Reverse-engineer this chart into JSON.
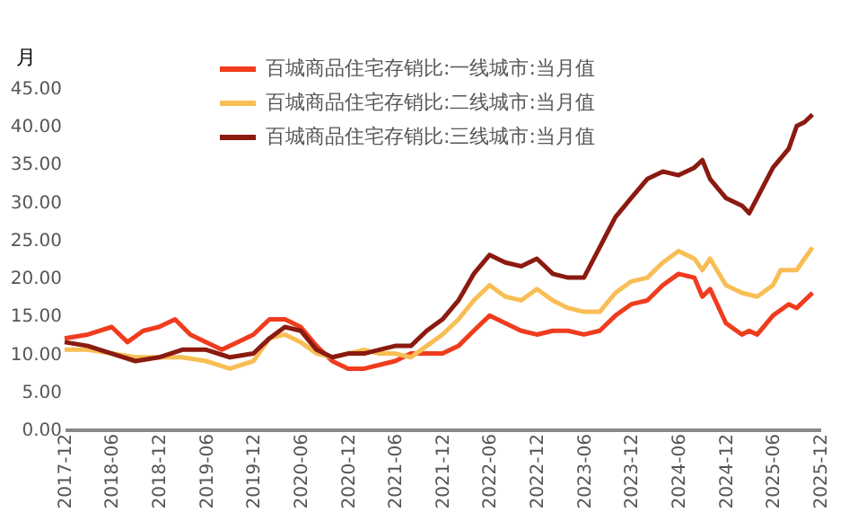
{
  "chart_data": {
    "type": "line",
    "ylabel": "月",
    "legend": "top",
    "grid": false,
    "line_style": "solid",
    "marker": "none",
    "xlim": [
      "2017-12",
      "2025-12"
    ],
    "xticks": [
      "2017-12",
      "2018-06",
      "2018-12",
      "2019-06",
      "2019-12",
      "2020-06",
      "2020-12",
      "2021-06",
      "2021-12",
      "2022-06",
      "2022-12",
      "2023-06",
      "2023-12",
      "2024-06",
      "2024-12",
      "2025-06",
      "2025-12"
    ],
    "ylim": [
      0,
      45
    ],
    "yticks": [
      {
        "value": 0,
        "label": "0.00"
      },
      {
        "value": 5,
        "label": "5.00"
      },
      {
        "value": 10,
        "label": "10.00"
      },
      {
        "value": 15,
        "label": "15.00"
      },
      {
        "value": 20,
        "label": "20.00"
      },
      {
        "value": 25,
        "label": "25.00"
      },
      {
        "value": 30,
        "label": "30.00"
      },
      {
        "value": 35,
        "label": "35.00"
      },
      {
        "value": 40,
        "label": "40.00"
      },
      {
        "value": 45,
        "label": "45.00"
      }
    ],
    "series": [
      {
        "name": "百城商品住宅存销比:一线城市:当月值",
        "color": "#f03c1e",
        "x": [
          "2017-12",
          "2018-03",
          "2018-06",
          "2018-08",
          "2018-10",
          "2018-12",
          "2019-02",
          "2019-04",
          "2019-06",
          "2019-08",
          "2019-10",
          "2019-12",
          "2020-02",
          "2020-04",
          "2020-06",
          "2020-08",
          "2020-10",
          "2020-12",
          "2021-02",
          "2021-04",
          "2021-06",
          "2021-08",
          "2021-10",
          "2021-12",
          "2022-02",
          "2022-04",
          "2022-06",
          "2022-08",
          "2022-10",
          "2022-12",
          "2023-02",
          "2023-04",
          "2023-06",
          "2023-08",
          "2023-10",
          "2023-12",
          "2024-02",
          "2024-04",
          "2024-06",
          "2024-08",
          "2024-09",
          "2024-10",
          "2024-12",
          "2025-02",
          "2025-03",
          "2025-04",
          "2025-06",
          "2025-08",
          "2025-09",
          "2025-10",
          "2025-11"
        ],
        "values": [
          12,
          12.5,
          13.5,
          11.5,
          13,
          13.5,
          14.5,
          12.5,
          11.5,
          10.5,
          11.5,
          12.5,
          14.5,
          14.5,
          13.5,
          11,
          9,
          8,
          8,
          8.5,
          9,
          10,
          10,
          10,
          11,
          13,
          15,
          14,
          13,
          12.5,
          13,
          13,
          12.5,
          13,
          15,
          16.5,
          17,
          19,
          20.5,
          20,
          17.5,
          18.5,
          14,
          12.5,
          13,
          12.5,
          15,
          16.5,
          16,
          17,
          18
        ]
      },
      {
        "name": "百城商品住宅存销比:二线城市:当月值",
        "color": "#f8be55",
        "x": [
          "2017-12",
          "2018-03",
          "2018-06",
          "2018-09",
          "2018-12",
          "2019-03",
          "2019-06",
          "2019-09",
          "2019-12",
          "2020-02",
          "2020-04",
          "2020-06",
          "2020-08",
          "2020-10",
          "2020-12",
          "2021-02",
          "2021-04",
          "2021-06",
          "2021-08",
          "2021-10",
          "2021-12",
          "2022-02",
          "2022-04",
          "2022-06",
          "2022-08",
          "2022-10",
          "2022-12",
          "2023-02",
          "2023-04",
          "2023-06",
          "2023-08",
          "2023-10",
          "2023-12",
          "2024-02",
          "2024-04",
          "2024-06",
          "2024-08",
          "2024-09",
          "2024-10",
          "2024-12",
          "2025-02",
          "2025-04",
          "2025-06",
          "2025-07",
          "2025-09",
          "2025-10",
          "2025-11"
        ],
        "values": [
          10.5,
          10.5,
          10,
          9.5,
          9.5,
          9.5,
          9,
          8,
          9,
          12,
          12.5,
          11.5,
          10,
          9.5,
          10,
          10.5,
          10,
          10,
          9.5,
          11,
          12.5,
          14.5,
          17,
          19,
          17.5,
          17,
          18.5,
          17,
          16,
          15.5,
          15.5,
          18,
          19.5,
          20,
          22,
          23.5,
          22.5,
          21,
          22.5,
          19,
          18,
          17.5,
          19,
          21,
          21,
          22.5,
          24
        ]
      },
      {
        "name": "百城商品住宅存销比:三线城市:当月值",
        "color": "#8b1a10",
        "x": [
          "2017-12",
          "2018-03",
          "2018-06",
          "2018-09",
          "2018-12",
          "2019-03",
          "2019-06",
          "2019-09",
          "2019-12",
          "2020-02",
          "2020-04",
          "2020-06",
          "2020-08",
          "2020-10",
          "2020-12",
          "2021-02",
          "2021-04",
          "2021-06",
          "2021-08",
          "2021-10",
          "2021-12",
          "2022-02",
          "2022-04",
          "2022-06",
          "2022-08",
          "2022-10",
          "2022-12",
          "2023-02",
          "2023-04",
          "2023-06",
          "2023-08",
          "2023-10",
          "2023-12",
          "2024-02",
          "2024-04",
          "2024-06",
          "2024-08",
          "2024-09",
          "2024-10",
          "2024-12",
          "2025-02",
          "2025-03",
          "2025-04",
          "2025-06",
          "2025-08",
          "2025-09",
          "2025-10",
          "2025-11"
        ],
        "values": [
          11.5,
          11,
          10,
          9,
          9.5,
          10.5,
          10.5,
          9.5,
          10,
          12,
          13.5,
          13,
          10.5,
          9.5,
          10,
          10,
          10.5,
          11,
          11,
          13,
          14.5,
          17,
          20.5,
          23,
          22,
          21.5,
          22.5,
          20.5,
          20,
          20,
          24,
          28,
          30.5,
          33,
          34,
          33.5,
          34.5,
          35.5,
          33,
          30.5,
          29.5,
          28.5,
          30.5,
          34.5,
          37,
          40,
          40.5,
          41.5
        ]
      }
    ]
  }
}
